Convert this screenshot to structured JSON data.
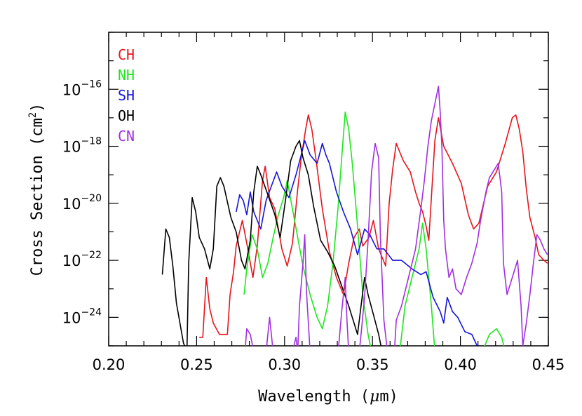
{
  "chart_data": {
    "type": "line",
    "title": "",
    "xlabel_pre": "Wavelength (",
    "xlabel_mu": "μ",
    "xlabel_post": "m)",
    "ylabel_pre": "Cross Section (cm",
    "ylabel_sup": "2",
    "ylabel_post": ")",
    "xlim": [
      0.2,
      0.45
    ],
    "ylim": [
      -25,
      -14
    ],
    "yscale": "log",
    "x_ticks": [
      0.2,
      0.25,
      0.3,
      0.35,
      0.4,
      0.45
    ],
    "x_tick_labels": [
      "0.20",
      "0.25",
      "0.30",
      "0.35",
      "0.40",
      "0.45"
    ],
    "y_ticks": [
      -24,
      -22,
      -20,
      -18,
      -16
    ],
    "y_tick_base": "10",
    "y_tick_exponents": [
      "−24",
      "−22",
      "−20",
      "−18",
      "−16"
    ],
    "grid": false,
    "legend_position": "top-left",
    "series": [
      {
        "name": "CH",
        "color": "#e8141c",
        "points": [
          [
            0.2515,
            -24.7
          ],
          [
            0.2535,
            -24.7
          ],
          [
            0.2555,
            -22.6
          ],
          [
            0.2575,
            -23.7
          ],
          [
            0.2595,
            -24.2
          ],
          [
            0.263,
            -24.6
          ],
          [
            0.2675,
            -24.6
          ],
          [
            0.269,
            -23.2
          ],
          [
            0.271,
            -22.4
          ],
          [
            0.2725,
            -21.5
          ],
          [
            0.276,
            -20.6
          ],
          [
            0.2785,
            -21.4
          ],
          [
            0.282,
            -22.6
          ],
          [
            0.2845,
            -21.5
          ],
          [
            0.2875,
            -19.2
          ],
          [
            0.289,
            -18.7
          ],
          [
            0.2915,
            -19.8
          ],
          [
            0.2945,
            -20.2
          ],
          [
            0.2985,
            -21.6
          ],
          [
            0.3015,
            -22.2
          ],
          [
            0.3045,
            -21.4
          ],
          [
            0.3075,
            -19.5
          ],
          [
            0.3095,
            -18.4
          ],
          [
            0.312,
            -17.4
          ],
          [
            0.3135,
            -16.9
          ],
          [
            0.3155,
            -17.4
          ],
          [
            0.318,
            -18.5
          ],
          [
            0.3215,
            -20.2
          ],
          [
            0.3255,
            -21.7
          ],
          [
            0.3295,
            -22.6
          ],
          [
            0.3335,
            -23.2
          ],
          [
            0.3365,
            -22.1
          ],
          [
            0.3395,
            -21.2
          ],
          [
            0.3425,
            -20.9
          ],
          [
            0.3445,
            -21.5
          ],
          [
            0.348,
            -21.2
          ],
          [
            0.3505,
            -20.6
          ],
          [
            0.3535,
            -21.6
          ],
          [
            0.3575,
            -22.2
          ],
          [
            0.3595,
            -20.0
          ],
          [
            0.3615,
            -18.8
          ],
          [
            0.3635,
            -17.9
          ],
          [
            0.3675,
            -18.5
          ],
          [
            0.3715,
            -18.9
          ],
          [
            0.3745,
            -19.6
          ],
          [
            0.3765,
            -20.0
          ],
          [
            0.3785,
            -20.3
          ],
          [
            0.3805,
            -20.8
          ],
          [
            0.382,
            -21.3
          ],
          [
            0.3835,
            -19.8
          ],
          [
            0.3855,
            -17.8
          ],
          [
            0.3875,
            -17.0
          ],
          [
            0.3905,
            -18.0
          ],
          [
            0.3955,
            -18.6
          ],
          [
            0.4005,
            -19.3
          ],
          [
            0.4045,
            -20.4
          ],
          [
            0.4075,
            -20.9
          ],
          [
            0.4105,
            -20.7
          ],
          [
            0.4155,
            -19.4
          ],
          [
            0.4205,
            -18.9
          ],
          [
            0.4255,
            -17.9
          ],
          [
            0.4295,
            -17.0
          ],
          [
            0.4315,
            -16.9
          ],
          [
            0.4335,
            -17.4
          ],
          [
            0.4355,
            -18.2
          ],
          [
            0.4375,
            -19.5
          ],
          [
            0.4395,
            -20.5
          ],
          [
            0.4425,
            -21.2
          ],
          [
            0.4445,
            -21.8
          ],
          [
            0.4475,
            -22.0
          ],
          [
            0.4495,
            -22.1
          ]
        ]
      },
      {
        "name": "NH",
        "color": "#1ee61e",
        "points": [
          [
            0.277,
            -23.2
          ],
          [
            0.2785,
            -22.3
          ],
          [
            0.2815,
            -21.1
          ],
          [
            0.2845,
            -21.6
          ],
          [
            0.2875,
            -22.6
          ],
          [
            0.2905,
            -22.1
          ],
          [
            0.2935,
            -21.2
          ],
          [
            0.2965,
            -20.4
          ],
          [
            0.2995,
            -19.8
          ],
          [
            0.3015,
            -19.2
          ],
          [
            0.3045,
            -20.2
          ],
          [
            0.3075,
            -21.2
          ],
          [
            0.3105,
            -22.2
          ],
          [
            0.3145,
            -23.2
          ],
          [
            0.3185,
            -24.0
          ],
          [
            0.3215,
            -24.4
          ],
          [
            0.3245,
            -23.6
          ],
          [
            0.3275,
            -22.1
          ],
          [
            0.3305,
            -20.1
          ],
          [
            0.3325,
            -18.4
          ],
          [
            0.3345,
            -16.8
          ],
          [
            0.3365,
            -17.4
          ],
          [
            0.3385,
            -18.6
          ],
          [
            0.3415,
            -20.8
          ],
          [
            0.3445,
            -23.2
          ],
          [
            0.3475,
            -24.6
          ],
          [
            0.3495,
            -25.2
          ],
          [
            0.3655,
            -25.2
          ],
          [
            0.3685,
            -23.6
          ],
          [
            0.3725,
            -22.6
          ],
          [
            0.3765,
            -21.6
          ],
          [
            0.3785,
            -20.7
          ],
          [
            0.3805,
            -21.6
          ],
          [
            0.3835,
            -23.6
          ],
          [
            0.3855,
            -25.2
          ],
          [
            0.4125,
            -25.2
          ],
          [
            0.4165,
            -24.6
          ],
          [
            0.4205,
            -24.4
          ],
          [
            0.4235,
            -24.7
          ],
          [
            0.4255,
            -25.2
          ]
        ]
      },
      {
        "name": "SH",
        "color": "#1414dc",
        "points": [
          [
            0.2725,
            -20.3
          ],
          [
            0.2745,
            -19.7
          ],
          [
            0.2765,
            -19.9
          ],
          [
            0.2785,
            -20.4
          ],
          [
            0.2805,
            -19.6
          ],
          [
            0.2825,
            -20.3
          ],
          [
            0.2865,
            -20.9
          ],
          [
            0.2895,
            -19.9
          ],
          [
            0.2925,
            -19.4
          ],
          [
            0.2955,
            -18.9
          ],
          [
            0.2985,
            -19.4
          ],
          [
            0.3025,
            -19.8
          ],
          [
            0.3065,
            -19.0
          ],
          [
            0.3095,
            -18.3
          ],
          [
            0.3115,
            -17.8
          ],
          [
            0.3145,
            -18.3
          ],
          [
            0.3185,
            -18.6
          ],
          [
            0.3215,
            -17.9
          ],
          [
            0.3235,
            -18.3
          ],
          [
            0.3255,
            -18.6
          ],
          [
            0.3295,
            -19.6
          ],
          [
            0.3335,
            -20.3
          ],
          [
            0.3375,
            -20.9
          ],
          [
            0.3415,
            -21.8
          ],
          [
            0.3455,
            -20.9
          ],
          [
            0.3485,
            -21.1
          ],
          [
            0.3525,
            -21.6
          ],
          [
            0.3565,
            -21.6
          ],
          [
            0.3615,
            -22.0
          ],
          [
            0.3665,
            -22.0
          ],
          [
            0.3725,
            -22.3
          ],
          [
            0.3775,
            -22.5
          ],
          [
            0.3805,
            -22.4
          ],
          [
            0.3845,
            -23.3
          ],
          [
            0.3885,
            -23.8
          ],
          [
            0.3905,
            -24.2
          ],
          [
            0.3925,
            -23.3
          ],
          [
            0.3955,
            -23.8
          ],
          [
            0.3985,
            -24.0
          ],
          [
            0.4025,
            -24.5
          ],
          [
            0.4065,
            -24.6
          ],
          [
            0.4095,
            -25.0
          ],
          [
            0.4115,
            -25.2
          ]
        ]
      },
      {
        "name": "OH",
        "color": "#000000",
        "points": [
          [
            0.2305,
            -22.5
          ],
          [
            0.2325,
            -20.9
          ],
          [
            0.2345,
            -21.2
          ],
          [
            0.2365,
            -22.2
          ],
          [
            0.2385,
            -23.5
          ],
          [
            0.2405,
            -24.2
          ],
          [
            0.2425,
            -24.9
          ],
          [
            0.2445,
            -25.2
          ],
          [
            0.2455,
            -22.1
          ],
          [
            0.2475,
            -19.8
          ],
          [
            0.2495,
            -20.3
          ],
          [
            0.2515,
            -21.2
          ],
          [
            0.2545,
            -21.6
          ],
          [
            0.2575,
            -22.3
          ],
          [
            0.2595,
            -21.6
          ],
          [
            0.2615,
            -19.4
          ],
          [
            0.2635,
            -19.1
          ],
          [
            0.2655,
            -19.4
          ],
          [
            0.2695,
            -20.5
          ],
          [
            0.2725,
            -21.0
          ],
          [
            0.2755,
            -22.0
          ],
          [
            0.2775,
            -22.3
          ],
          [
            0.2805,
            -21.3
          ],
          [
            0.2825,
            -19.6
          ],
          [
            0.2845,
            -18.7
          ],
          [
            0.2865,
            -19.0
          ],
          [
            0.2905,
            -19.7
          ],
          [
            0.2945,
            -20.4
          ],
          [
            0.2975,
            -21.2
          ],
          [
            0.3005,
            -19.9
          ],
          [
            0.3035,
            -18.5
          ],
          [
            0.3065,
            -18.0
          ],
          [
            0.3085,
            -17.8
          ],
          [
            0.3105,
            -18.4
          ],
          [
            0.3135,
            -19.0
          ],
          [
            0.3165,
            -20.1
          ],
          [
            0.3205,
            -21.3
          ],
          [
            0.3245,
            -21.7
          ],
          [
            0.3285,
            -22.2
          ],
          [
            0.3325,
            -22.9
          ],
          [
            0.3365,
            -23.6
          ],
          [
            0.3395,
            -24.2
          ],
          [
            0.3415,
            -24.6
          ],
          [
            0.3435,
            -23.6
          ],
          [
            0.3455,
            -22.6
          ],
          [
            0.3475,
            -23.2
          ],
          [
            0.3505,
            -23.9
          ],
          [
            0.3535,
            -24.6
          ],
          [
            0.3555,
            -25.2
          ]
        ]
      },
      {
        "name": "CN",
        "color": "#a030e0",
        "points": [
          [
            0.2775,
            -25.2
          ],
          [
            0.2785,
            -24.4
          ],
          [
            0.2805,
            -24.6
          ],
          [
            0.2825,
            -25.2
          ],
          [
            0.2895,
            -25.2
          ],
          [
            0.2915,
            -24.0
          ],
          [
            0.2935,
            -25.2
          ],
          [
            0.3045,
            -25.2
          ],
          [
            0.3065,
            -24.7
          ],
          [
            0.3075,
            -25.2
          ],
          [
            0.3085,
            -23.6
          ],
          [
            0.3105,
            -22.1
          ],
          [
            0.3115,
            -21.1
          ],
          [
            0.3125,
            -23.1
          ],
          [
            0.3145,
            -25.2
          ],
          [
            0.3305,
            -25.2
          ],
          [
            0.3325,
            -23.8
          ],
          [
            0.3345,
            -22.6
          ],
          [
            0.3355,
            -24.1
          ],
          [
            0.3365,
            -25.2
          ],
          [
            0.3425,
            -25.2
          ],
          [
            0.3435,
            -24.6
          ],
          [
            0.3455,
            -23.3
          ],
          [
            0.3475,
            -21.3
          ],
          [
            0.3495,
            -18.9
          ],
          [
            0.3515,
            -17.9
          ],
          [
            0.3535,
            -18.4
          ],
          [
            0.3545,
            -21.2
          ],
          [
            0.3565,
            -24.1
          ],
          [
            0.3585,
            -25.2
          ],
          [
            0.3625,
            -25.2
          ],
          [
            0.3635,
            -24.1
          ],
          [
            0.3665,
            -23.6
          ],
          [
            0.3705,
            -22.6
          ],
          [
            0.3745,
            -21.6
          ],
          [
            0.3775,
            -20.2
          ],
          [
            0.3795,
            -19.2
          ],
          [
            0.3815,
            -18.0
          ],
          [
            0.3835,
            -17.1
          ],
          [
            0.3855,
            -16.5
          ],
          [
            0.3875,
            -15.9
          ],
          [
            0.3885,
            -16.8
          ],
          [
            0.3895,
            -18.1
          ],
          [
            0.3905,
            -20.6
          ],
          [
            0.3915,
            -21.6
          ],
          [
            0.3935,
            -22.6
          ],
          [
            0.3955,
            -22.3
          ],
          [
            0.3975,
            -23.0
          ],
          [
            0.4005,
            -23.2
          ],
          [
            0.4035,
            -22.6
          ],
          [
            0.4065,
            -22.1
          ],
          [
            0.4095,
            -21.4
          ],
          [
            0.4115,
            -20.6
          ],
          [
            0.4145,
            -19.6
          ],
          [
            0.4165,
            -19.1
          ],
          [
            0.4195,
            -18.8
          ],
          [
            0.4215,
            -18.6
          ],
          [
            0.4235,
            -19.6
          ],
          [
            0.4245,
            -22.1
          ],
          [
            0.4265,
            -23.2
          ],
          [
            0.4295,
            -22.6
          ],
          [
            0.4325,
            -22.0
          ],
          [
            0.4345,
            -23.6
          ],
          [
            0.4355,
            -25.0
          ],
          [
            0.4375,
            -24.2
          ],
          [
            0.4395,
            -23.2
          ],
          [
            0.4415,
            -22.1
          ],
          [
            0.4435,
            -21.1
          ],
          [
            0.4455,
            -21.3
          ],
          [
            0.4475,
            -21.6
          ],
          [
            0.4495,
            -21.8
          ]
        ]
      }
    ]
  }
}
